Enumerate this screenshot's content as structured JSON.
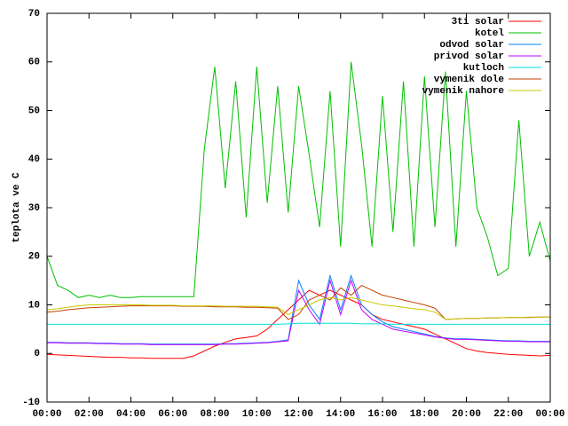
{
  "chart_data": {
    "type": "line",
    "y_label": "teplota ve C",
    "xlim": [
      0,
      24
    ],
    "xticks": [
      {
        "value": 0,
        "label": "00:00"
      },
      {
        "value": 2,
        "label": "02:00"
      },
      {
        "value": 4,
        "label": "04:00"
      },
      {
        "value": 6,
        "label": "06:00"
      },
      {
        "value": 8,
        "label": "08:00"
      },
      {
        "value": 10,
        "label": "10:00"
      },
      {
        "value": 12,
        "label": "12:00"
      },
      {
        "value": 14,
        "label": "14:00"
      },
      {
        "value": 16,
        "label": "16:00"
      },
      {
        "value": 18,
        "label": "18:00"
      },
      {
        "value": 20,
        "label": "20:00"
      },
      {
        "value": 22,
        "label": "22:00"
      },
      {
        "value": 24,
        "label": "00:00"
      }
    ],
    "ylim": [
      -10,
      70
    ],
    "yticks": [
      -10,
      0,
      10,
      20,
      30,
      40,
      50,
      60,
      70
    ],
    "grid": false,
    "legend": "top-right",
    "x": [
      0,
      0.5,
      1,
      1.5,
      2,
      2.5,
      3,
      3.5,
      4,
      4.5,
      5,
      5.5,
      6,
      6.5,
      7,
      7.5,
      8,
      8.5,
      9,
      9.5,
      10,
      10.5,
      11,
      11.5,
      12,
      12.5,
      13,
      13.5,
      14,
      14.5,
      15,
      15.5,
      16,
      16.5,
      17,
      17.5,
      18,
      18.5,
      19,
      19.5,
      20,
      20.5,
      21,
      21.5,
      22,
      22.5,
      23,
      23.5,
      24
    ],
    "series": [
      {
        "name": "3ti solar",
        "color": "#ff0000",
        "values": [
          -0.2,
          -0.3,
          -0.4,
          -0.5,
          -0.6,
          -0.7,
          -0.8,
          -0.8,
          -0.9,
          -0.9,
          -1,
          -1,
          -1,
          -1,
          -0.5,
          0.5,
          1.5,
          2.3,
          3,
          3.3,
          3.6,
          5,
          7,
          9,
          11,
          13,
          12,
          13,
          12,
          11,
          10,
          8,
          7,
          6.5,
          6,
          5.5,
          5,
          4,
          3,
          2,
          1,
          0.5,
          0.2,
          0,
          -0.2,
          -0.3,
          -0.4,
          -0.5,
          -0.4
        ]
      },
      {
        "name": "kotel",
        "color": "#00c000",
        "values": [
          20,
          14,
          13,
          11.5,
          12,
          11.5,
          12,
          11.5,
          11.5,
          11.7,
          11.7,
          11.7,
          11.7,
          11.7,
          11.7,
          42,
          59,
          34,
          56,
          28,
          59,
          31,
          55,
          29,
          55,
          41,
          26,
          54,
          22,
          60,
          43,
          22,
          53,
          25,
          56,
          22,
          57,
          26,
          58,
          22,
          54,
          30,
          24,
          16,
          17.5,
          48,
          20,
          27,
          19
        ]
      },
      {
        "name": "odvod solar",
        "color": "#0080ff",
        "values": [
          2.3,
          2.3,
          2.2,
          2.2,
          2.2,
          2.1,
          2.1,
          2,
          2,
          2,
          1.9,
          1.9,
          1.9,
          1.9,
          1.9,
          1.9,
          1.9,
          2,
          2,
          2.1,
          2.2,
          2.3,
          2.5,
          2.8,
          15,
          10,
          7,
          16,
          9,
          16,
          10,
          8,
          6.5,
          5.5,
          5,
          4.5,
          4,
          3.5,
          3.2,
          3,
          3,
          2.9,
          2.8,
          2.7,
          2.6,
          2.6,
          2.5,
          2.5,
          2.5
        ]
      },
      {
        "name": "privod solar",
        "color": "#c000ff",
        "values": [
          2.2,
          2.2,
          2.1,
          2.1,
          2.1,
          2,
          2,
          1.9,
          1.9,
          1.9,
          1.8,
          1.8,
          1.8,
          1.8,
          1.8,
          1.8,
          1.8,
          1.9,
          1.9,
          2,
          2.1,
          2.2,
          2.4,
          2.6,
          13,
          9,
          6,
          15,
          8,
          15,
          9,
          7,
          6,
          5,
          4.6,
          4.2,
          3.8,
          3.4,
          3.1,
          2.9,
          2.9,
          2.8,
          2.7,
          2.6,
          2.5,
          2.5,
          2.4,
          2.4,
          2.4
        ]
      },
      {
        "name": "kutloch",
        "color": "#00dede",
        "values": [
          6,
          6,
          6,
          6,
          6,
          6,
          6,
          6,
          6,
          6,
          6,
          6,
          6,
          6,
          6,
          6,
          6,
          6,
          6,
          6,
          6,
          6,
          6,
          6.1,
          6.2,
          6.2,
          6.2,
          6.2,
          6.2,
          6.2,
          6.1,
          6.1,
          6.1,
          6,
          6,
          6,
          6,
          6,
          6,
          6,
          6,
          6,
          6,
          6,
          6,
          6,
          6,
          6,
          6
        ]
      },
      {
        "name": "vymenik dole",
        "color": "#c04000",
        "values": [
          8.5,
          8.7,
          9,
          9.2,
          9.4,
          9.5,
          9.6,
          9.7,
          9.8,
          9.8,
          9.8,
          9.8,
          9.8,
          9.7,
          9.7,
          9.7,
          9.6,
          9.6,
          9.6,
          9.5,
          9.5,
          9.4,
          9.3,
          7,
          8,
          11,
          12,
          11,
          13.5,
          12,
          14,
          13,
          12,
          11.5,
          11,
          10.5,
          10,
          9.3,
          7,
          7.1,
          7.2,
          7.2,
          7.3,
          7.3,
          7.4,
          7.4,
          7.4,
          7.5,
          7.5
        ]
      },
      {
        "name": "vymenik nahore",
        "color": "#c8c800",
        "values": [
          9,
          9.2,
          9.5,
          9.8,
          10,
          10,
          10,
          10,
          10,
          10,
          9.9,
          9.9,
          9.9,
          9.8,
          9.8,
          9.8,
          9.8,
          9.7,
          9.7,
          9.7,
          9.7,
          9.6,
          9.5,
          8,
          9,
          10,
          11,
          11.5,
          11,
          11.5,
          11,
          10.5,
          10,
          9.8,
          9.5,
          9.2,
          9,
          8.5,
          7,
          7.1,
          7.2,
          7.2,
          7.3,
          7.3,
          7.4,
          7.4,
          7.5,
          7.5,
          7.5
        ]
      }
    ]
  }
}
